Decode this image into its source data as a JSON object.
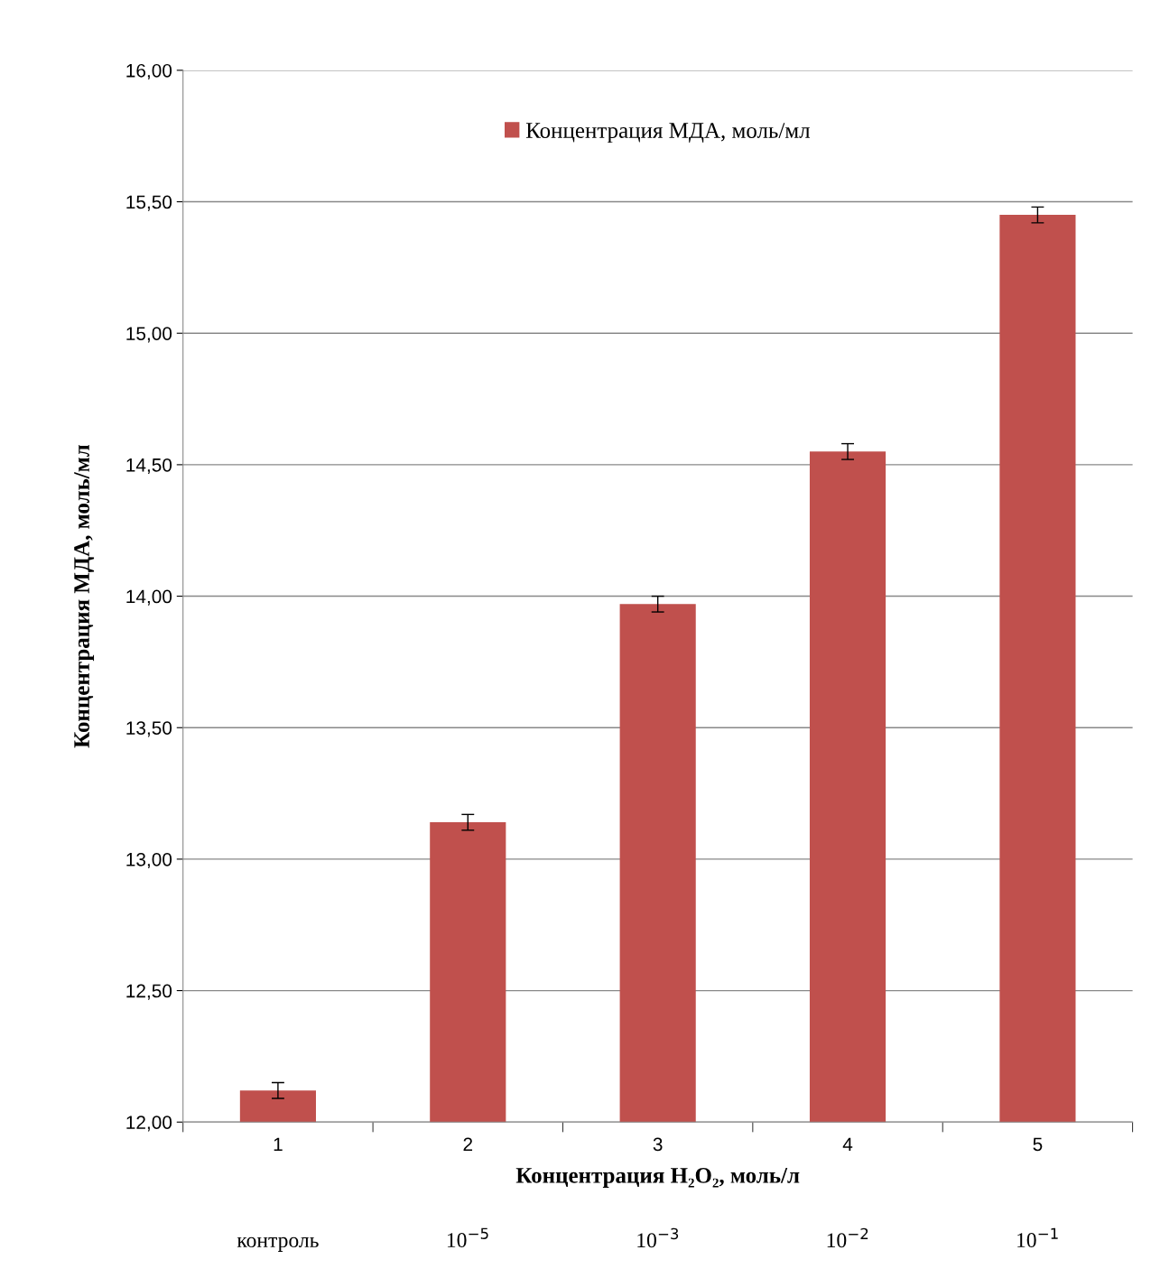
{
  "chart_data": {
    "type": "bar",
    "xlabel": "Концентрация H₂O₂, моль/л",
    "ylabel": "Концентрация МДА, моль/мл",
    "categories": [
      "1",
      "2",
      "3",
      "4",
      "5"
    ],
    "series": [
      {
        "name": "Концентрация МДА, моль/мл",
        "color": "#c0504d",
        "values": [
          12.12,
          13.14,
          13.97,
          14.55,
          15.45
        ],
        "errors": [
          0.03,
          0.03,
          0.03,
          0.03,
          0.03
        ]
      }
    ],
    "ylim": [
      12,
      16
    ],
    "yticks": [
      {
        "value": 12,
        "label": "12,00"
      },
      {
        "value": 12.5,
        "label": "12,50"
      },
      {
        "value": 13,
        "label": "13,00"
      },
      {
        "value": 13.5,
        "label": "13,50"
      },
      {
        "value": 14,
        "label": "14,00"
      },
      {
        "value": 14.5,
        "label": "14,50"
      },
      {
        "value": 15,
        "label": "15,00"
      },
      {
        "value": 15.5,
        "label": "15,50"
      },
      {
        "value": 16,
        "label": "16,00"
      }
    ],
    "grid": "y",
    "legend": "top",
    "annotations": [
      "контроль",
      "10$^{−5}$",
      "10$^{−3}$",
      "10$^{−2}$",
      "10$^{−1}$"
    ]
  }
}
